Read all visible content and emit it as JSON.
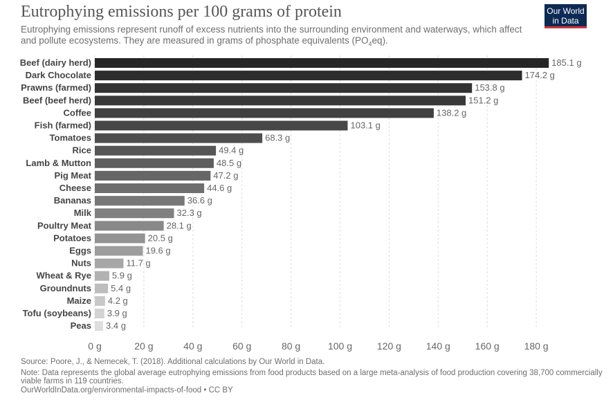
{
  "header": {
    "title": "Eutrophying emissions per 100 grams of protein",
    "subtitle_main": "Eutrophying emissions represent runoff of excess nutrients into the surrounding environment and waterways, which affect and pollute ecosystems. They are measured in grams of phosphate equivalents (PO",
    "subtitle_sub": "4",
    "subtitle_end": "eq).",
    "logo_line1": "Our World",
    "logo_line2": "in Data"
  },
  "footer": {
    "source": "Source: Poore, J., & Nemecek, T. (2018). Additional calculations by Our World in Data.",
    "note": "Note: Data represents the global average eutrophying emissions from food products based on a large meta-analysis of food production covering 38,700 commercially viable farms in 119 countries.",
    "url": "OurWorldInData.org/environmental-impacts-of-food • CC BY"
  },
  "chart_data": {
    "type": "bar",
    "orientation": "horizontal",
    "unit_suffix": " g",
    "categories": [
      "Beef (dairy herd)",
      "Dark Chocolate",
      "Prawns (farmed)",
      "Beef (beef herd)",
      "Coffee",
      "Fish (farmed)",
      "Tomatoes",
      "Rice",
      "Lamb & Mutton",
      "Pig Meat",
      "Cheese",
      "Bananas",
      "Milk",
      "Poultry Meat",
      "Potatoes",
      "Eggs",
      "Nuts",
      "Wheat & Rye",
      "Groundnuts",
      "Maize",
      "Tofu (soybeans)",
      "Peas"
    ],
    "values": [
      185.1,
      174.2,
      153.8,
      151.2,
      138.2,
      103.1,
      68.3,
      49.4,
      48.5,
      47.2,
      44.6,
      36.6,
      32.3,
      28.1,
      20.5,
      19.6,
      11.7,
      5.9,
      5.4,
      4.2,
      3.9,
      3.4
    ],
    "value_labels": [
      "185.1 g",
      "174.2 g",
      "153.8 g",
      "151.2 g",
      "138.2 g",
      "103.1 g",
      "68.3 g",
      "49.4 g",
      "48.5 g",
      "47.2 g",
      "44.6 g",
      "36.6 g",
      "32.3 g",
      "28.1 g",
      "20.5 g",
      "19.6 g",
      "11.7 g",
      "5.9 g",
      "5.4 g",
      "4.2 g",
      "3.9 g",
      "3.4 g"
    ],
    "xticks": [
      "0 g",
      "20 g",
      "40 g",
      "60 g",
      "80 g",
      "100 g",
      "120 g",
      "140 g",
      "160 g",
      "180 g"
    ],
    "xlim": [
      0,
      185.1
    ],
    "grid": "vertical dotted",
    "colors": [
      "#262626",
      "#2d2d2d",
      "#333333",
      "#393939",
      "#404040",
      "#474747",
      "#4e4e4e",
      "#565656",
      "#5e5e5e",
      "#666666",
      "#6e6e6e",
      "#777777",
      "#808080",
      "#898989",
      "#939393",
      "#9d9d9d",
      "#a7a7a7",
      "#b2b2b2",
      "#bdbdbd",
      "#c8c8c8",
      "#d3d3d3",
      "#dedede"
    ]
  }
}
